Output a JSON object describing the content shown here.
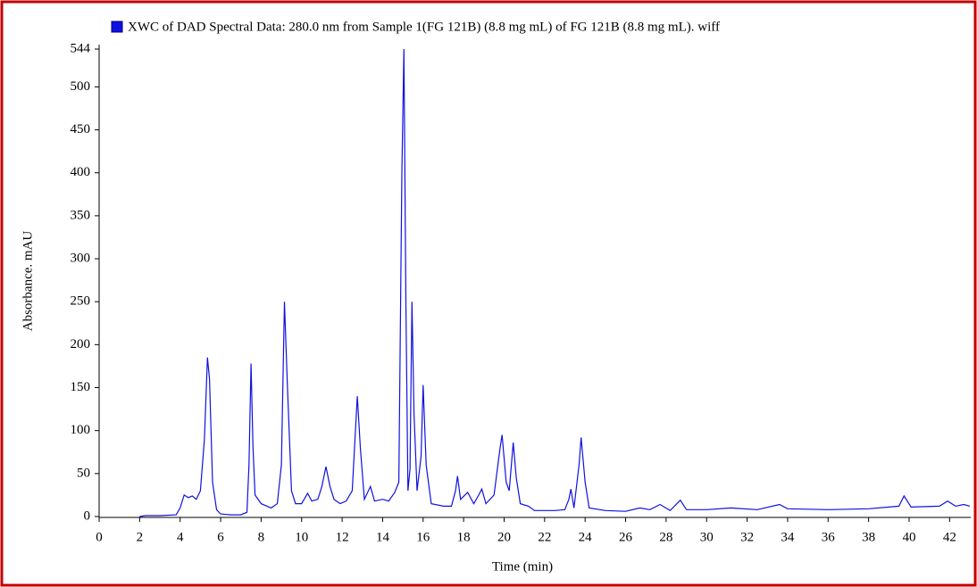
{
  "chart_data": {
    "type": "line",
    "x_label": "Time (min)",
    "y_label": "Absorbance. mAU",
    "series": [
      {
        "name": "XWC of DAD Spectral Data: 280.0 nm from Sample 1(FG 121B) (8.8 mg mL) of FG 121B (8.8 mg mL). wiff",
        "color": "#1010e0",
        "x": [
          2.0,
          2.3,
          3.0,
          3.8,
          4.0,
          4.2,
          4.4,
          4.6,
          4.8,
          5.0,
          5.2,
          5.35,
          5.45,
          5.6,
          5.8,
          6.0,
          6.5,
          7.0,
          7.3,
          7.4,
          7.5,
          7.6,
          7.7,
          8.0,
          8.5,
          8.8,
          9.0,
          9.15,
          9.3,
          9.5,
          9.7,
          10.0,
          10.3,
          10.5,
          10.8,
          11.0,
          11.2,
          11.4,
          11.6,
          11.9,
          12.2,
          12.5,
          12.75,
          12.9,
          13.1,
          13.4,
          13.6,
          14.0,
          14.3,
          14.6,
          14.8,
          14.95,
          15.05,
          15.15,
          15.25,
          15.35,
          15.45,
          15.55,
          15.7,
          15.9,
          16.0,
          16.15,
          16.4,
          17.0,
          17.4,
          17.6,
          17.7,
          17.85,
          18.2,
          18.5,
          18.75,
          18.9,
          19.1,
          19.5,
          19.8,
          19.9,
          20.1,
          20.25,
          20.45,
          20.6,
          20.8,
          21.2,
          21.5,
          22.5,
          23.0,
          23.2,
          23.3,
          23.45,
          23.7,
          23.8,
          24.0,
          24.2,
          25.0,
          26.0,
          26.7,
          27.2,
          27.7,
          28.2,
          28.7,
          29.0,
          30.0,
          31.2,
          32.5,
          33.6,
          34.0,
          36.0,
          38.0,
          39.5,
          39.75,
          40.1,
          41.5,
          41.9,
          42.3,
          42.7,
          43.0
        ],
        "values": [
          0,
          1,
          1,
          2,
          10,
          25,
          22,
          24,
          20,
          30,
          90,
          185,
          160,
          40,
          8,
          3,
          2,
          2,
          5,
          60,
          178,
          80,
          25,
          15,
          10,
          15,
          60,
          250,
          150,
          30,
          15,
          15,
          27,
          18,
          20,
          35,
          58,
          35,
          20,
          15,
          18,
          30,
          140,
          80,
          20,
          35,
          18,
          20,
          18,
          28,
          40,
          400,
          544,
          250,
          30,
          55,
          250,
          120,
          30,
          70,
          153,
          60,
          15,
          12,
          12,
          30,
          47,
          20,
          28,
          15,
          25,
          32,
          15,
          25,
          80,
          95,
          40,
          30,
          86,
          45,
          15,
          12,
          7,
          7,
          8,
          20,
          32,
          10,
          60,
          92,
          40,
          10,
          7,
          6,
          10,
          8,
          14,
          7,
          19,
          8,
          8,
          10,
          8,
          14,
          9,
          8,
          9,
          12,
          24,
          11,
          12,
          18,
          12,
          14,
          12
        ]
      }
    ],
    "xlim": [
      0,
      43
    ],
    "ylim": [
      0,
      544
    ],
    "xticks": [
      0,
      2,
      4,
      6,
      8,
      10,
      12,
      14,
      16,
      18,
      20,
      22,
      24,
      26,
      28,
      30,
      32,
      34,
      36,
      38,
      40,
      42
    ],
    "yticks": [
      0,
      50,
      100,
      150,
      200,
      250,
      300,
      350,
      400,
      450,
      500,
      544
    ]
  }
}
